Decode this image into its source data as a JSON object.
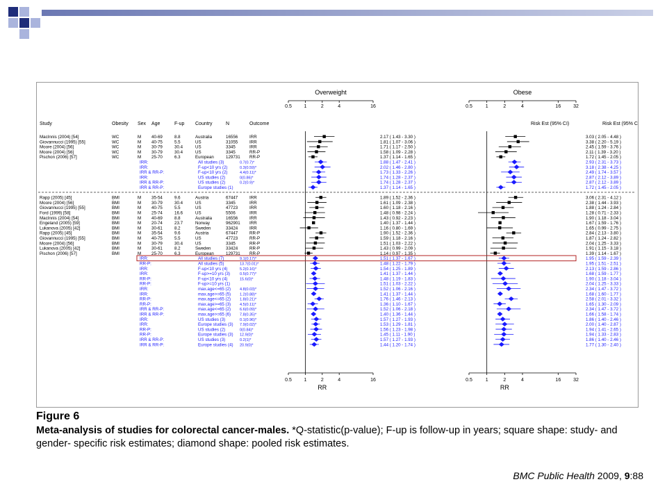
{
  "colors": {
    "marker": "#1a1aff",
    "box": "#000000",
    "highlight": "#b22222",
    "deco_dark": "#1f2d7a",
    "deco_light": "#aab4dd"
  },
  "figure": {
    "label": "Figure 6",
    "caption_bold": "Meta-analysis of studies for colorectal cancer-males.",
    "caption_text": " *Q-statistic(p-value); F-up is follow-up in years; square shape: study- and gender- specific risk estimates; diamond shape: pooled risk estimates.",
    "citation_journal": "BMC Public Health",
    "citation_year": "2009,",
    "citation_vol": "9",
    "citation_page": ":88"
  },
  "chart_data": {
    "type": "forest",
    "columns": [
      "Study",
      "Obesity",
      "Sex",
      "Age",
      "F-up",
      "Country",
      "N",
      "Outcome"
    ],
    "panel_titles": [
      "Overweight",
      "Obese"
    ],
    "est_header": "Risk Est (95% CI)",
    "x_label": "RR",
    "ticks_overweight": [
      "0.5",
      "1",
      "2",
      "4",
      "16"
    ],
    "ticks_obese": [
      "0.5",
      "1",
      "2",
      "4",
      "16",
      "32"
    ],
    "tick_values_overweight": [
      0.5,
      1,
      2,
      4,
      16
    ],
    "tick_values_obese": [
      0.5,
      1,
      2,
      4,
      16,
      32
    ],
    "scale": "log2",
    "rows": [
      {
        "type": "study",
        "study": "MacInnis (2004) [54]",
        "ob": "WC",
        "sex": "M",
        "age": "40-69",
        "fup": "8.8",
        "country": "Australia",
        "n": "16556",
        "outcome": "IRR",
        "ow": {
          "est": 2.17,
          "lo": 1.43,
          "hi": 3.3,
          "text": "2.17 ( 1.43 - 3.30 )"
        },
        "obs": {
          "est": 3.03,
          "lo": 2.05,
          "hi": 4.48,
          "text": "3.03 ( 2.05 - 4.48 )"
        }
      },
      {
        "type": "study",
        "study": "Giovannucci (1995) [55]",
        "ob": "WC",
        "sex": "M",
        "age": "40-75",
        "fup": "5.5",
        "country": "US",
        "n": "31055",
        "outcome": "IRR",
        "ow": {
          "est": 1.81,
          "lo": 1.07,
          "hi": 3.06,
          "text": "1.81 ( 1.07 - 3.06 )"
        },
        "obs": {
          "est": 3.38,
          "lo": 2.2,
          "hi": 5.19,
          "text": "3.38 ( 2.20 - 5.19 )"
        }
      },
      {
        "type": "study",
        "study": "Moore (2004) [56]",
        "ob": "WC",
        "sex": "M",
        "age": "30-79",
        "fup": "30.4",
        "country": "US",
        "n": "3345",
        "outcome": "IRR",
        "ow": {
          "est": 1.71,
          "lo": 1.17,
          "hi": 2.5,
          "text": "1.71 ( 1.17 - 2.50 )"
        },
        "obs": {
          "est": 2.45,
          "lo": 1.59,
          "hi": 3.76,
          "text": "2.45 ( 1.59 - 3.76 )"
        }
      },
      {
        "type": "study",
        "study": "Moore (2004) [56]",
        "ob": "WC",
        "sex": "M",
        "age": "30-79",
        "fup": "30.4",
        "country": "US",
        "n": "3345",
        "outcome": "RR-P",
        "ow": {
          "est": 1.58,
          "lo": 1.09,
          "hi": 2.28,
          "text": "1.58 ( 1.09 - 2.28 )"
        },
        "obs": {
          "est": 2.11,
          "lo": 1.39,
          "hi": 3.2,
          "text": "2.11 ( 1.39 - 3.20 )"
        }
      },
      {
        "type": "study",
        "study": "Pischon (2006) [57]",
        "ob": "WC",
        "sex": "M",
        "age": "25-70",
        "fup": "6.3",
        "country": "European",
        "n": "129731",
        "outcome": "RR-P",
        "ow": {
          "est": 1.37,
          "lo": 1.14,
          "hi": 1.65,
          "text": "1.37 ( 1.14 - 1.65 )"
        },
        "obs": {
          "est": 1.72,
          "lo": 1.45,
          "hi": 2.05,
          "text": "1.72 ( 1.45 - 2.05 )"
        }
      },
      {
        "type": "pooled",
        "outcome_label": "IRR:",
        "desc": "All studies (3)",
        "q": "0.7(0.7)*",
        "ow": {
          "est": 1.88,
          "lo": 1.47,
          "hi": 2.41,
          "text": "1.88 ( 1.47 - 2.41 )"
        },
        "obs": {
          "est": 2.93,
          "lo": 2.31,
          "hi": 3.73,
          "text": "2.93 ( 2.31 - 3.73 )"
        }
      },
      {
        "type": "pooled",
        "outcome_label": "IRR:",
        "desc": "F-up<10 yrs (2)",
        "q": "0.3(0.59)*",
        "ow": {
          "est": 2.02,
          "lo": 1.46,
          "hi": 2.8,
          "text": "2.02 ( 1.46 - 2.80 )"
        },
        "obs": {
          "est": 3.18,
          "lo": 2.38,
          "hi": 4.25,
          "text": "3.18 ( 2.38 - 4.25 )"
        }
      },
      {
        "type": "pooled",
        "outcome_label": "IRR & RR-P:",
        "desc": "F-up<10 yrs (2)",
        "q": "4.4(0.11)*",
        "ow": {
          "est": 1.73,
          "lo": 1.33,
          "hi": 2.26,
          "text": "1.73 ( 1.33 - 2.26 )"
        },
        "obs": {
          "est": 2.49,
          "lo": 1.74,
          "hi": 3.57,
          "text": "2.49 ( 1.74 - 3.57 )"
        }
      },
      {
        "type": "pooled",
        "outcome_label": "IRR:",
        "desc": "US studies (2)",
        "q": "0(0.86)*",
        "ow": {
          "est": 1.74,
          "lo": 1.28,
          "hi": 2.37,
          "text": "1.74 ( 1.28 - 2.37 )"
        },
        "obs": {
          "est": 2.87,
          "lo": 2.12,
          "hi": 3.89,
          "text": "2.87 ( 2.12 - 3.89 )"
        }
      },
      {
        "type": "pooled",
        "outcome_label": "IRR & RR-P:",
        "desc": "US studies (2)",
        "q": "0.2(0.9)*",
        "ow": {
          "est": 1.74,
          "lo": 1.28,
          "hi": 2.37,
          "text": "1.74 ( 1.28 - 2.37 )"
        },
        "obs": {
          "est": 2.87,
          "lo": 2.12,
          "hi": 3.89,
          "text": "2.87 ( 2.12 - 3.89 )"
        }
      },
      {
        "type": "pooled",
        "outcome_label": "IRR & RR-P:",
        "desc": "Europe studies (1)",
        "q": "",
        "ow": {
          "est": 1.37,
          "lo": 1.14,
          "hi": 1.65,
          "text": "1.37 ( 1.14 - 1.65 )"
        },
        "obs": {
          "est": 1.72,
          "lo": 1.45,
          "hi": 2.05,
          "text": "1.72 ( 1.45 - 2.05 )"
        }
      },
      {
        "type": "sep"
      },
      {
        "type": "study",
        "study": "Rapp (2005) [45]",
        "ob": "BMI",
        "sex": "M",
        "age": "35-54",
        "fup": "9.6",
        "country": "Austria",
        "n": "67447",
        "outcome": "IRR",
        "ow": {
          "est": 1.89,
          "lo": 1.52,
          "hi": 2.36,
          "text": "1.89 ( 1.52 - 2.36 )"
        },
        "obs": {
          "est": 3.06,
          "lo": 2.31,
          "hi": 4.12,
          "text": "3.06 ( 2.31 - 4.12 )"
        }
      },
      {
        "type": "study",
        "study": "Moore (2004) [56]",
        "ob": "BMI",
        "sex": "M",
        "age": "30-79",
        "fup": "30.4",
        "country": "US",
        "n": "3345",
        "outcome": "IRR",
        "ow": {
          "est": 1.61,
          "lo": 1.09,
          "hi": 2.38,
          "text": "1.61 ( 1.09 - 2.38 )"
        },
        "obs": {
          "est": 2.38,
          "lo": 1.44,
          "hi": 3.93,
          "text": "2.38 ( 1.44 - 3.93 )"
        }
      },
      {
        "type": "study",
        "study": "Giovannucci (1995) [55]",
        "ob": "BMI",
        "sex": "M",
        "age": "40-75",
        "fup": "5.5",
        "country": "US",
        "n": "47723",
        "outcome": "IRR",
        "ow": {
          "est": 1.6,
          "lo": 1.18,
          "hi": 2.16,
          "text": "1.60 ( 1.18 - 2.16 )"
        },
        "obs": {
          "est": 1.88,
          "lo": 1.24,
          "hi": 2.84,
          "text": "1.88 ( 1.24 - 2.84 )"
        }
      },
      {
        "type": "study",
        "study": "Ford (1999) [58]",
        "ob": "BMI",
        "sex": "M",
        "age": "25-74",
        "fup": "16.6",
        "country": "US",
        "n": "5506",
        "outcome": "IRR",
        "ow": {
          "est": 1.48,
          "lo": 0.98,
          "hi": 2.24,
          "text": "1.48 ( 0.98 - 2.24 )"
        },
        "obs": {
          "est": 1.28,
          "lo": 0.71,
          "hi": 2.33,
          "text": "1.28 ( 0.71 - 2.33 )"
        }
      },
      {
        "type": "study",
        "study": "MacInnis (2004) [54]",
        "ob": "BMI",
        "sex": "M",
        "age": "40-69",
        "fup": "8.8",
        "country": "Australia",
        "n": "16556",
        "outcome": "IRR",
        "ow": {
          "est": 1.43,
          "lo": 0.92,
          "hi": 2.23,
          "text": "1.43 ( 0.92 - 2.23 )"
        },
        "obs": {
          "est": 1.9,
          "lo": 1.18,
          "hi": 3.04,
          "text": "1.90 ( 1.18 - 3.04 )"
        }
      },
      {
        "type": "study",
        "study": "Engeland (2005) [59]",
        "ob": "BMI",
        "sex": "M",
        "age": "20-74",
        "fup": "23.7",
        "country": "Norway",
        "n": "962901",
        "outcome": "IRR",
        "ow": {
          "est": 1.4,
          "lo": 1.37,
          "hi": 1.44,
          "text": "1.40 ( 1.37 - 1.44 )"
        },
        "obs": {
          "est": 1.67,
          "lo": 1.59,
          "hi": 1.76,
          "text": "1.67 ( 1.59 - 1.76 )"
        }
      },
      {
        "type": "study",
        "study": "Lukanova (2005) [42]",
        "ob": "BMI",
        "sex": "M",
        "age": "30-61",
        "fup": "8.2",
        "country": "Sweden",
        "n": "33424",
        "outcome": "IRR",
        "ow": {
          "est": 1.16,
          "lo": 0.8,
          "hi": 1.69,
          "text": "1.16 ( 0.80 - 1.69 )"
        },
        "obs": {
          "est": 1.65,
          "lo": 0.99,
          "hi": 2.75,
          "text": "1.65 ( 0.99 - 2.75 )"
        }
      },
      {
        "type": "study",
        "study": "Rapp (2005) [45]",
        "ob": "BMI",
        "sex": "M",
        "age": "35-54",
        "fup": "9.6",
        "country": "Austria",
        "n": "67447",
        "outcome": "RR-P",
        "ow": {
          "est": 1.9,
          "lo": 1.52,
          "hi": 2.36,
          "text": "1.90 ( 1.52 - 2.36 )"
        },
        "obs": {
          "est": 2.84,
          "lo": 2.13,
          "hi": 3.8,
          "text": "2.84 ( 2.13 - 3.80 )"
        }
      },
      {
        "type": "study",
        "study": "Giovannucci (1995) [55]",
        "ob": "BMI",
        "sex": "M",
        "age": "40-75",
        "fup": "5.5",
        "country": "US",
        "n": "47723",
        "outcome": "RR-P",
        "ow": {
          "est": 1.59,
          "lo": 1.18,
          "hi": 2.16,
          "text": "1.59 ( 1.18 - 2.16 )"
        },
        "obs": {
          "est": 1.87,
          "lo": 1.24,
          "hi": 2.82,
          "text": "1.87 ( 1.24 - 2.82 )"
        }
      },
      {
        "type": "study",
        "study": "Moore (2004) [56]",
        "ob": "BMI",
        "sex": "M",
        "age": "30-79",
        "fup": "30.4",
        "country": "US",
        "n": "3345",
        "outcome": "RR-P",
        "ow": {
          "est": 1.51,
          "lo": 1.03,
          "hi": 2.22,
          "text": "1.51 ( 1.03 - 2.22 )"
        },
        "obs": {
          "est": 2.04,
          "lo": 1.25,
          "hi": 3.33,
          "text": "2.04 ( 1.25 - 3.33 )"
        }
      },
      {
        "type": "study",
        "study": "Lukanova (2005) [42]",
        "ob": "BMI",
        "sex": "M",
        "age": "30-61",
        "fup": "8.2",
        "country": "Sweden",
        "n": "33424",
        "outcome": "RR-P",
        "ow": {
          "est": 1.43,
          "lo": 0.99,
          "hi": 2.09,
          "text": "1.43 ( 0.99 - 2.09 )"
        },
        "obs": {
          "est": 1.91,
          "lo": 1.15,
          "hi": 3.18,
          "text": "1.91 ( 1.15 - 3.18 )"
        }
      },
      {
        "type": "study",
        "study": "Pischon (2006) [57]",
        "ob": "BMI",
        "sex": "M",
        "age": "25-70",
        "fup": "6.3",
        "country": "European",
        "n": "129731",
        "outcome": "RR-P",
        "ow": {
          "est": 1.14,
          "lo": 0.97,
          "hi": 1.35,
          "text": "1.14 ( 0.97 - 1.35 )"
        },
        "obs": {
          "est": 1.39,
          "lo": 1.14,
          "hi": 1.67,
          "text": "1.39 ( 1.14 - 1.67 )"
        }
      },
      {
        "type": "pooled",
        "highlight": true,
        "outcome_label": "IRR:",
        "desc": "All studies (7)",
        "q": "9.1(0.17)*",
        "ow": {
          "est": 1.51,
          "lo": 1.37,
          "hi": 1.67,
          "text": "1.51 ( 1.37 - 1.67 )"
        },
        "obs": {
          "est": 1.95,
          "lo": 1.59,
          "hi": 2.39,
          "text": "1.95 ( 1.59 - 2.39 )"
        }
      },
      {
        "type": "pooled",
        "outcome_label": "RR-P:",
        "desc": "All studies (5)",
        "q": "13.7(0.01)*",
        "ow": {
          "est": 1.48,
          "lo": 1.22,
          "hi": 1.79,
          "text": "1.48 ( 1.22 - 1.79 )"
        },
        "obs": {
          "est": 1.95,
          "lo": 1.51,
          "hi": 2.51,
          "text": "1.95 ( 1.51 - 2.51 )"
        }
      },
      {
        "type": "pooled",
        "outcome_label": "IRR:",
        "desc": "F-up<10 yrs (4)",
        "q": "5.2(0.16)*",
        "ow": {
          "est": 1.54,
          "lo": 1.25,
          "hi": 1.89,
          "text": "1.54 ( 1.25 - 1.89 )"
        },
        "obs": {
          "est": 2.13,
          "lo": 1.59,
          "hi": 2.86,
          "text": "2.13 ( 1.59 - 2.86 )"
        }
      },
      {
        "type": "pooled",
        "outcome_label": "IRR:",
        "desc": "F-up>=10 yrs (3)",
        "q": "0.5(0.77)*",
        "ow": {
          "est": 1.41,
          "lo": 1.37,
          "hi": 1.44,
          "text": "1.41 ( 1.37 - 1.44 )"
        },
        "obs": {
          "est": 1.68,
          "lo": 1.59,
          "hi": 1.77,
          "text": "1.68 ( 1.59 - 1.77 )"
        }
      },
      {
        "type": "pooled",
        "outcome_label": "RR-P:",
        "desc": "F-up<10 yrs (4)",
        "q": "15.6(0)*",
        "ow": {
          "est": 1.48,
          "lo": 1.19,
          "hi": 1.83,
          "text": "1.48 ( 1.19 - 1.83 )"
        },
        "obs": {
          "est": 1.9,
          "lo": 1.18,
          "hi": 3.04,
          "text": "1.90 ( 1.18 - 3.04 )"
        }
      },
      {
        "type": "pooled",
        "outcome_label": "RR-P:",
        "desc": "F-up>=10 yrs (1)",
        "q": "",
        "ow": {
          "est": 1.51,
          "lo": 1.03,
          "hi": 2.22,
          "text": "1.51 ( 1.03 - 2.22 )"
        },
        "obs": {
          "est": 2.04,
          "lo": 1.25,
          "hi": 3.33,
          "text": "2.04 ( 1.25 - 3.33 )"
        }
      },
      {
        "type": "pooled",
        "outcome_label": "IRR:",
        "desc": "max.age<=65 (2)",
        "q": "4.8(0.03)*",
        "ow": {
          "est": 1.52,
          "lo": 1.06,
          "hi": 2.16,
          "text": "1.52 ( 1.06 - 2.16 )"
        },
        "obs": {
          "est": 2.34,
          "lo": 1.47,
          "hi": 3.72,
          "text": "2.34 ( 1.47 - 3.72 )"
        }
      },
      {
        "type": "pooled",
        "outcome_label": "IRR:",
        "desc": "max.age>=65 (5)",
        "q": "1.2(0.88)*",
        "ow": {
          "est": 1.41,
          "lo": 1.37,
          "hi": 1.44,
          "text": "1.41 ( 1.37 - 1.44 )"
        },
        "obs": {
          "est": 1.68,
          "lo": 1.6,
          "hi": 1.77,
          "text": "1.68 ( 1.60 - 1.77 )"
        }
      },
      {
        "type": "pooled",
        "outcome_label": "RR-P:",
        "desc": "max.age<=65 (2)",
        "q": "1.8(0.21)*",
        "ow": {
          "est": 1.76,
          "lo": 1.46,
          "hi": 2.13,
          "text": "1.76 ( 1.46 - 2.13 )"
        },
        "obs": {
          "est": 2.58,
          "lo": 2.01,
          "hi": 3.32,
          "text": "2.58 ( 2.01 - 3.32 )"
        }
      },
      {
        "type": "pooled",
        "outcome_label": "RR-P:",
        "desc": "max.age>=65 (3)",
        "q": "4.5(0.11)*",
        "ow": {
          "est": 1.36,
          "lo": 1.1,
          "hi": 1.67,
          "text": "1.36 ( 1.10 - 1.67 )"
        },
        "obs": {
          "est": 1.65,
          "lo": 1.3,
          "hi": 2.09,
          "text": "1.65 ( 1.30 - 2.09 )"
        }
      },
      {
        "type": "pooled",
        "outcome_label": "IRR & RR-P:",
        "desc": "max.age<=65 (2)",
        "q": "6.6(0.09)*",
        "ow": {
          "est": 1.52,
          "lo": 1.06,
          "hi": 2.18,
          "text": "1.52 ( 1.06 - 2.18 )"
        },
        "obs": {
          "est": 2.34,
          "lo": 1.47,
          "hi": 3.72,
          "text": "2.34 ( 1.47 - 3.72 )"
        }
      },
      {
        "type": "pooled",
        "outcome_label": "IRR & RR-P:",
        "desc": "max.age>=65 (6)",
        "q": "7.8(0.35)*",
        "ow": {
          "est": 1.4,
          "lo": 1.36,
          "hi": 1.44,
          "text": "1.40 ( 1.36 - 1.44 )"
        },
        "obs": {
          "est": 1.66,
          "lo": 1.58,
          "hi": 1.74,
          "text": "1.66 ( 1.58 - 1.74 )"
        }
      },
      {
        "type": "pooled",
        "outcome_label": "IRR:",
        "desc": "US studies (3)",
        "q": "0.1(0.96)*",
        "ow": {
          "est": 1.57,
          "lo": 1.27,
          "hi": 1.93,
          "text": "1.57 ( 1.27 - 1.93 )"
        },
        "obs": {
          "est": 1.86,
          "lo": 1.4,
          "hi": 2.46,
          "text": "1.86 ( 1.40 - 2.46 )"
        }
      },
      {
        "type": "pooled",
        "outcome_label": "IRR:",
        "desc": "Europe studies (3)",
        "q": "7.9(0.02)*",
        "ow": {
          "est": 1.53,
          "lo": 1.29,
          "hi": 1.81,
          "text": "1.53 ( 1.29 - 1.81 )"
        },
        "obs": {
          "est": 2.0,
          "lo": 1.4,
          "hi": 2.87,
          "text": "2.00 ( 1.40 - 2.87 )"
        }
      },
      {
        "type": "pooled",
        "outcome_label": "RR-P:",
        "desc": "US studies (2)",
        "q": "0(0.84)*",
        "ow": {
          "est": 1.56,
          "lo": 1.23,
          "hi": 1.98,
          "text": "1.56 ( 1.23 - 1.98 )"
        },
        "obs": {
          "est": 1.94,
          "lo": 1.41,
          "hi": 2.65,
          "text": "1.94 ( 1.41 - 2.65 )"
        }
      },
      {
        "type": "pooled",
        "outcome_label": "RR-P:",
        "desc": "Europe studies (3)",
        "q": "12.9(0)*",
        "ow": {
          "est": 1.45,
          "lo": 1.11,
          "hi": 1.9,
          "text": "1.45 ( 1.11 - 1.90 )"
        },
        "obs": {
          "est": 1.94,
          "lo": 1.33,
          "hi": 2.83,
          "text": "1.94 ( 1.33 - 2.83 )"
        }
      },
      {
        "type": "pooled",
        "outcome_label": "IRR & RR-P:",
        "desc": "US studies (3)",
        "q": "0.2(1)*",
        "ow": {
          "est": 1.57,
          "lo": 1.27,
          "hi": 1.93,
          "text": "1.57 ( 1.27 - 1.93 )"
        },
        "obs": {
          "est": 1.86,
          "lo": 1.4,
          "hi": 2.46,
          "text": "1.86 ( 1.40 - 2.46 )"
        }
      },
      {
        "type": "pooled",
        "outcome_label": "IRR & RR-P:",
        "desc": "Europe studies (4)",
        "q": "20.9(0)*",
        "ow": {
          "est": 1.44,
          "lo": 1.2,
          "hi": 1.74,
          "text": "1.44 ( 1.20 - 1.74 )"
        },
        "obs": {
          "est": 1.77,
          "lo": 1.3,
          "hi": 2.4,
          "text": "1.77 ( 1.30 - 2.40 )"
        }
      }
    ]
  }
}
